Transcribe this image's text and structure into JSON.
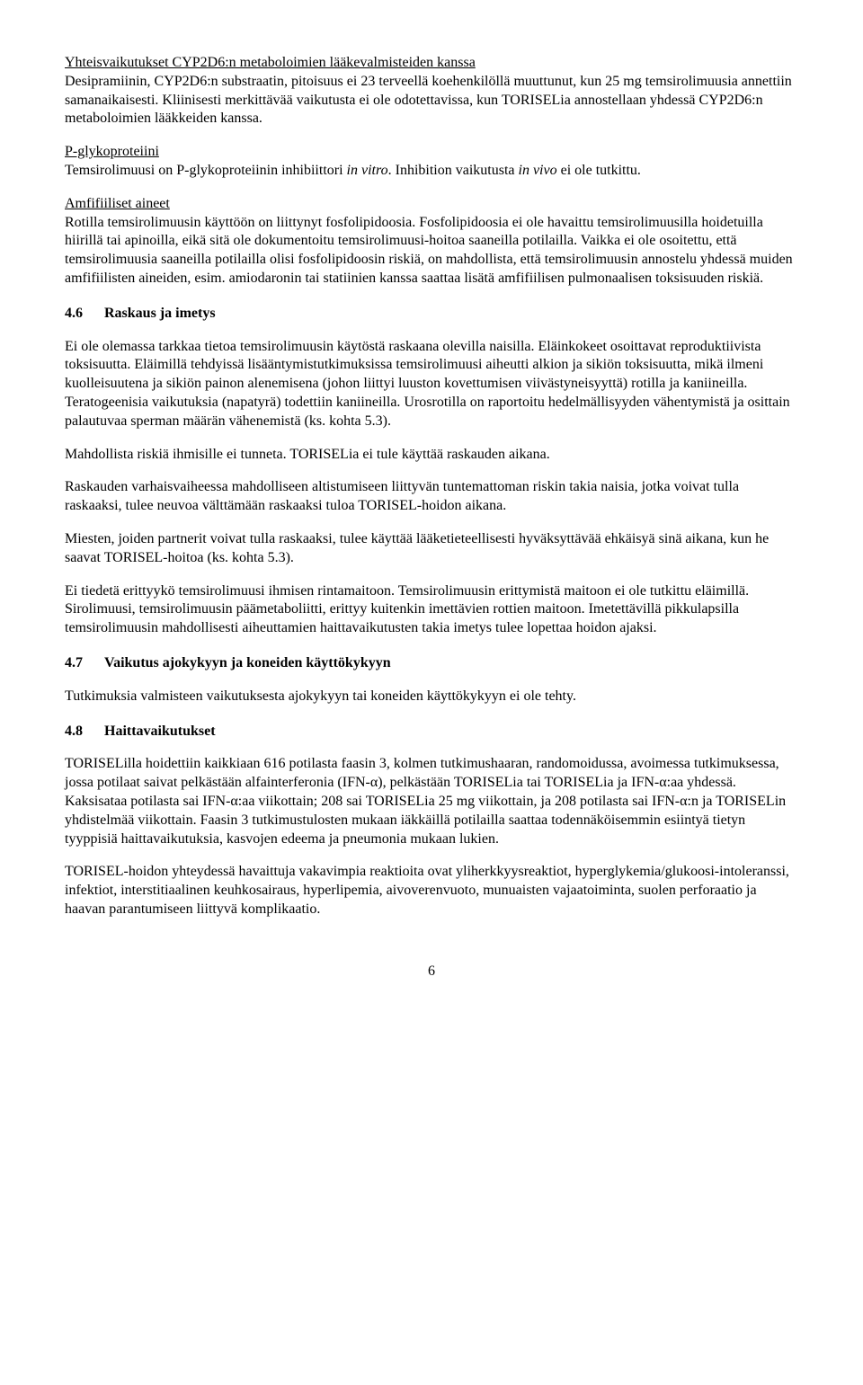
{
  "section_cyp2d6": {
    "title": "Yhteisvaikutukset CYP2D6:n metaboloimien lääkevalmisteiden kanssa",
    "body": "Desipramiinin, CYP2D6:n substraatin, pitoisuus ei 23 terveellä koehenkilöllä muuttunut, kun 25 mg temsirolimuusia annettiin samanaikaisesti. Kliinisesti merkittävää vaikutusta ei ole odotettavissa, kun TORISELia annostellaan yhdessä CYP2D6:n metaboloimien lääkkeiden kanssa."
  },
  "section_pgp": {
    "title": "P-glykoproteiini",
    "body_pre": "Temsirolimuusi on P-glykoproteiinin inhibiittori ",
    "italic1": "in vitro",
    "body_mid": ". Inhibition vaikutusta ",
    "italic2": "in vivo",
    "body_post": " ei ole tutkittu."
  },
  "section_amf": {
    "title": "Amfifiiliset aineet",
    "body": "Rotilla temsirolimuusin käyttöön on liittynyt fosfolipidoosia. Fosfolipidoosia ei ole havaittu temsirolimuusilla hoidetuilla hiirillä tai apinoilla, eikä sitä ole dokumentoitu temsirolimuusi-hoitoa saaneilla potilailla. Vaikka ei ole osoitettu, että temsirolimuusia saaneilla potilailla olisi fosfolipidoosin riskiä, on mahdollista, että temsirolimuusin annostelu yhdessä muiden amfifiilisten aineiden, esim. amiodaronin tai statiinien kanssa saattaa lisätä amfifiilisen pulmonaalisen toksisuuden riskiä."
  },
  "h46": {
    "num": "4.6",
    "title": "Raskaus ja imetys"
  },
  "p46_1": "Ei ole olemassa tarkkaa tietoa temsirolimuusin käytöstä raskaana olevilla naisilla. Eläinkokeet osoittavat reproduktiivista toksisuutta. Eläimillä tehdyissä lisääntymistutkimuksissa temsirolimuusi aiheutti alkion ja sikiön toksisuutta, mikä ilmeni kuolleisuutena ja sikiön painon alenemisena (johon liittyi luuston kovettumisen viivästyneisyyttä) rotilla ja kaniineilla. Teratogeenisia vaikutuksia (napatyrä) todettiin kaniineilla. Urosrotilla on raportoitu hedelmällisyyden vähentymistä ja osittain palautuvaa sperman määrän vähenemistä (ks. kohta 5.3).",
  "p46_2": "Mahdollista riskiä ihmisille ei tunneta. TORISELia ei tule käyttää raskauden aikana.",
  "p46_3": "Raskauden varhaisvaiheessa mahdolliseen altistumiseen liittyvän tuntemattoman riskin takia naisia, jotka voivat tulla raskaaksi, tulee neuvoa välttämään raskaaksi tuloa TORISEL-hoidon aikana.",
  "p46_4": "Miesten, joiden partnerit voivat tulla raskaaksi, tulee käyttää lääketieteellisesti hyväksyttävää ehkäisyä sinä aikana, kun he saavat TORISEL-hoitoa (ks. kohta 5.3).",
  "p46_5": "Ei tiedetä erittyykö temsirolimuusi ihmisen rintamaitoon. Temsirolimuusin erittymistä maitoon ei ole tutkittu eläimillä. Sirolimuusi, temsirolimuusin päämetaboliitti, erittyy kuitenkin imettävien rottien maitoon. Imetettävillä pikkulapsilla temsirolimuusin mahdollisesti aiheuttamien haittavaikutusten takia imetys tulee lopettaa hoidon ajaksi.",
  "h47": {
    "num": "4.7",
    "title": "Vaikutus ajokykyyn ja koneiden käyttökykyyn"
  },
  "p47_1": "Tutkimuksia valmisteen vaikutuksesta ajokykyyn tai koneiden käyttökykyyn ei ole tehty.",
  "h48": {
    "num": "4.8",
    "title": "Haittavaikutukset"
  },
  "p48_1": "TORISELilla hoidettiin kaikkiaan 616 potilasta faasin 3, kolmen tutkimushaaran, randomoidussa, avoimessa tutkimuksessa, jossa potilaat saivat pelkästään alfainterferonia (IFN-α), pelkästään TORISELia tai TORISELia ja IFN-α:aa yhdessä. Kaksisataa potilasta sai IFN-α:aa viikottain; 208 sai TORISELia 25 mg viikottain, ja 208 potilasta sai IFN-α:n ja TORISELin yhdistelmää viikottain. Faasin 3 tutkimustulosten mukaan iäkkäillä potilailla saattaa todennäköisemmin esiintyä tietyn tyyppisiä haittavaikutuksia, kasvojen edeema ja pneumonia mukaan lukien.",
  "p48_2": "TORISEL-hoidon yhteydessä havaittuja vakavimpia reaktioita ovat yliherkkyysreaktiot, hyperglykemia/glukoosi-intoleranssi, infektiot, interstitiaalinen keuhkosairaus, hyperlipemia, aivoverenvuoto, munuaisten vajaatoiminta, suolen perforaatio ja haavan parantumiseen liittyvä komplikaatio.",
  "page_number": "6"
}
